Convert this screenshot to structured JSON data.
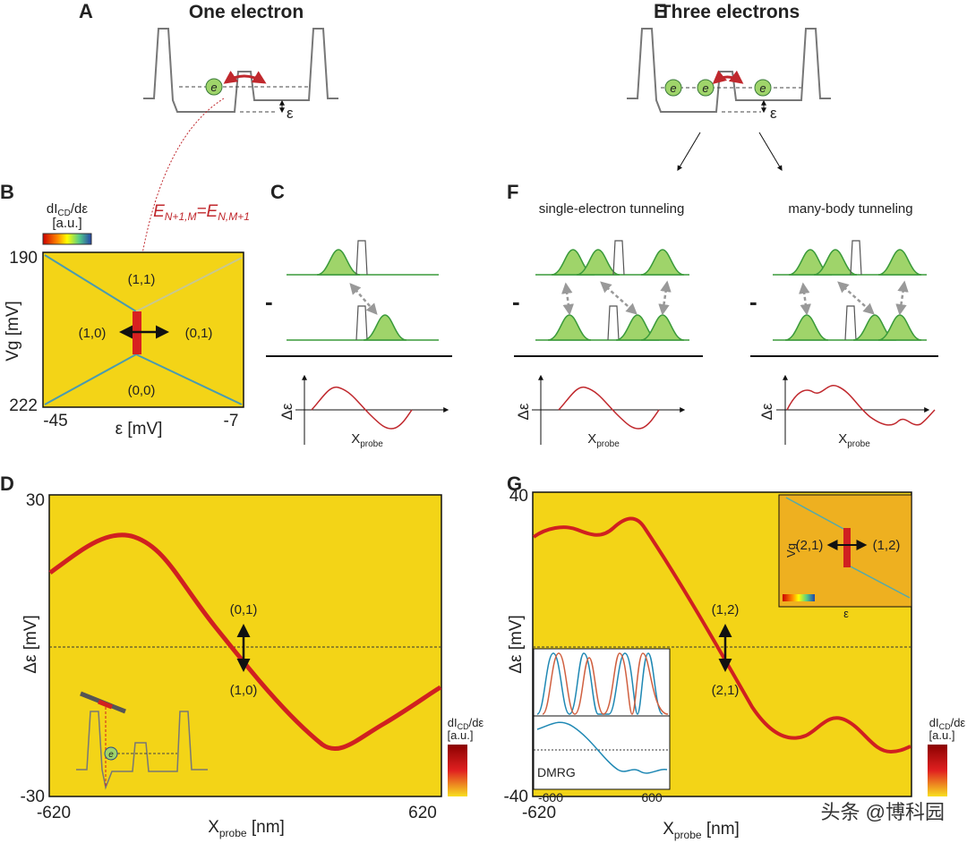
{
  "panel_a": {
    "letter": "A",
    "title": "One electron",
    "electron": "e",
    "epsilon": "ε"
  },
  "panel_e": {
    "letter": "E",
    "title": "Three electrons",
    "electrons": [
      "e",
      "e",
      "e"
    ],
    "epsilon": "ε"
  },
  "equation": {
    "e1": "E",
    "sub1": "N+1,M",
    "e2": "=E",
    "sub2": "N,M+1"
  },
  "panel_b": {
    "letter": "B",
    "colorbar_label": {
      "main": "dI",
      "sub": "CD",
      "rest": "/dε"
    },
    "colorbar_unit": "[a.u.]",
    "y_label": "Vg [mV]",
    "x_label": "ε [mV]",
    "y_ticks": [
      190,
      222
    ],
    "x_ticks": [
      -45,
      -7
    ],
    "regions": [
      "(1,1)",
      "(1,0)",
      "(0,1)",
      "(0,0)"
    ]
  },
  "panel_c": {
    "letter": "C",
    "minus": "-",
    "y_label": "Δε",
    "x_label": {
      "main": "X",
      "sub": "probe"
    }
  },
  "panel_f": {
    "letter": "F",
    "left_title": "single-electron tunneling",
    "right_title": "many-body tunneling",
    "minus": [
      "-",
      "-"
    ],
    "plots": [
      {
        "y_label": "Δε",
        "x_label": {
          "main": "X",
          "sub": "probe"
        }
      },
      {
        "y_label": "Δε",
        "x_label": {
          "main": "X",
          "sub": "probe"
        }
      }
    ]
  },
  "panel_d": {
    "letter": "D",
    "y_ticks": [
      30,
      -30
    ],
    "x_ticks": [
      -620,
      620
    ],
    "y_label": "Δε [mV]",
    "x_label": {
      "main": "X",
      "sub": "probe",
      "rest": " [nm]"
    },
    "state_labels": [
      "(0,1)",
      "(1,0)"
    ],
    "inset_electron": "e",
    "colorbar_label": {
      "main": "dI",
      "sub": "CD",
      "rest": "/dε"
    },
    "colorbar_unit": "[a.u.]"
  },
  "panel_g": {
    "letter": "G",
    "y_ticks": [
      40,
      -40
    ],
    "x_ticks": [
      -620
    ],
    "y_label": "Δε [mV]",
    "x_label": {
      "main": "X",
      "sub": "probe",
      "rest": " [nm]"
    },
    "state_labels": [
      "(1,2)",
      "(2,1)"
    ],
    "inset_top": {
      "y_label": "Vg",
      "x_label": "ε",
      "states": [
        "(2,1)",
        "(1,2)"
      ]
    },
    "inset_bottom": {
      "x_ticks": [
        -600,
        600
      ],
      "label": "DMRG"
    },
    "colorbar_label": {
      "main": "dI",
      "sub": "CD",
      "rest": "/dε"
    },
    "colorbar_unit": "[a.u.]"
  },
  "watermark": "头条 @博科园"
}
